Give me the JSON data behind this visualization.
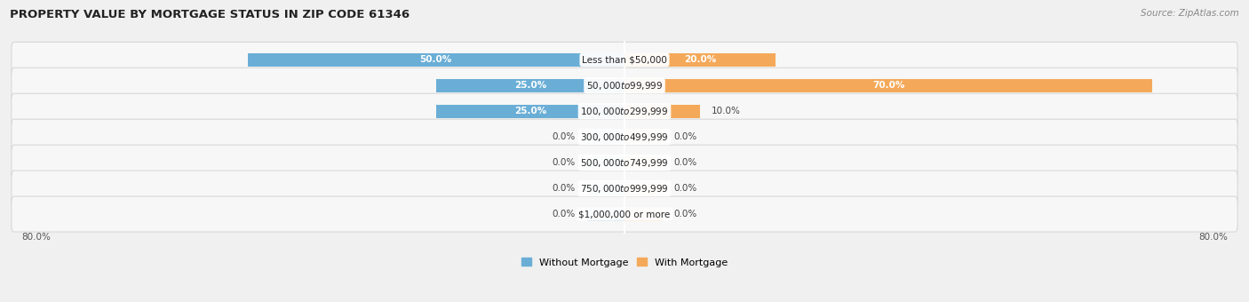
{
  "title": "PROPERTY VALUE BY MORTGAGE STATUS IN ZIP CODE 61346",
  "source": "Source: ZipAtlas.com",
  "categories": [
    "Less than $50,000",
    "$50,000 to $99,999",
    "$100,000 to $299,999",
    "$300,000 to $499,999",
    "$500,000 to $749,999",
    "$750,000 to $999,999",
    "$1,000,000 or more"
  ],
  "without_mortgage": [
    50.0,
    25.0,
    25.0,
    0.0,
    0.0,
    0.0,
    0.0
  ],
  "with_mortgage": [
    20.0,
    70.0,
    10.0,
    0.0,
    0.0,
    0.0,
    0.0
  ],
  "color_without": "#6aaed6",
  "color_with": "#f4a95a",
  "color_without_zero": "#aecce4",
  "color_with_zero": "#f8d5a8",
  "axis_limit": 80.0,
  "zero_stub": 5.0,
  "background_color": "#f0f0f0",
  "row_facecolor": "#f7f7f7",
  "row_edgecolor": "#d8d8d8",
  "center_line_color": "#ffffff",
  "title_fontsize": 9.5,
  "source_fontsize": 7.5,
  "cat_label_fontsize": 7.5,
  "bar_label_fontsize": 7.5,
  "legend_fontsize": 8,
  "axis_label_fontsize": 7.5
}
